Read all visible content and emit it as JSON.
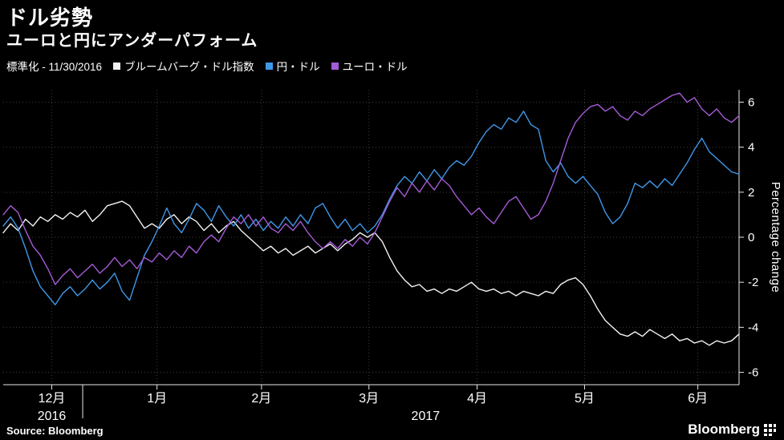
{
  "header": {
    "title": "ドル劣勢",
    "subtitle": "ユーロと円にアンダーパフォーム",
    "legend_prefix": "標準化 - 11/30/2016"
  },
  "footer": {
    "source": "Source: Bloomberg",
    "brand": "Bloomberg"
  },
  "chart_data": {
    "type": "line",
    "title": "ドル劣勢",
    "subtitle": "ユーロと円にアンダーパフォーム",
    "normalized_note": "標準化 - 11/30/2016",
    "ylabel": "Percentage change",
    "ylim": [
      -6.55,
      6.55
    ],
    "yticks": [
      6,
      4,
      2,
      0,
      -2,
      -4,
      -6
    ],
    "grid": true,
    "legend_position": "top",
    "xticks": [
      {
        "label": "12月",
        "pos": 0.066
      },
      {
        "label": "1月",
        "pos": 0.209
      },
      {
        "label": "2月",
        "pos": 0.351
      },
      {
        "label": "3月",
        "pos": 0.497
      },
      {
        "label": "4月",
        "pos": 0.644
      },
      {
        "label": "5月",
        "pos": 0.79
      },
      {
        "label": "6月",
        "pos": 0.944
      }
    ],
    "year_labels": [
      {
        "label": "2016",
        "pos": 0.066
      },
      {
        "label": "2017",
        "pos": 0.574
      }
    ],
    "year_divider_pos": 0.108,
    "x_range_note": "x values evenly spaced from 2016-11-30 to 2017-06-09, normalized 0..1",
    "series": [
      {
        "name": "ブルームバーグ・ドル指数",
        "color": "#f2f2f2",
        "values": [
          0.2,
          0.6,
          0.3,
          0.8,
          0.5,
          0.9,
          0.7,
          1.0,
          0.8,
          1.1,
          0.9,
          1.2,
          0.7,
          1.0,
          1.4,
          1.5,
          1.6,
          1.4,
          0.9,
          0.4,
          0.6,
          0.4,
          0.8,
          1.0,
          0.6,
          0.9,
          0.7,
          0.3,
          0.6,
          0.2,
          0.5,
          0.7,
          0.3,
          0.0,
          -0.3,
          -0.6,
          -0.4,
          -0.7,
          -0.5,
          -0.8,
          -0.6,
          -0.4,
          -0.7,
          -0.5,
          -0.3,
          -0.6,
          -0.3,
          -0.1,
          0.2,
          0.0,
          0.2,
          -0.2,
          -0.9,
          -1.5,
          -1.9,
          -2.2,
          -2.1,
          -2.4,
          -2.3,
          -2.5,
          -2.3,
          -2.4,
          -2.2,
          -2.0,
          -2.3,
          -2.4,
          -2.3,
          -2.5,
          -2.4,
          -2.6,
          -2.4,
          -2.5,
          -2.6,
          -2.4,
          -2.5,
          -2.1,
          -1.9,
          -1.8,
          -2.1,
          -2.6,
          -3.2,
          -3.7,
          -4.0,
          -4.3,
          -4.4,
          -4.2,
          -4.4,
          -4.1,
          -4.3,
          -4.5,
          -4.3,
          -4.6,
          -4.5,
          -4.7,
          -4.6,
          -4.8,
          -4.6,
          -4.7,
          -4.6,
          -4.3
        ]
      },
      {
        "name": "円・ドル",
        "color": "#3f97e8",
        "values": [
          0.5,
          0.9,
          0.4,
          -0.5,
          -1.5,
          -2.2,
          -2.6,
          -3.0,
          -2.5,
          -2.2,
          -2.6,
          -2.3,
          -1.9,
          -2.3,
          -2.0,
          -1.6,
          -2.4,
          -2.8,
          -1.8,
          -0.8,
          -0.2,
          0.5,
          1.3,
          0.6,
          0.2,
          0.8,
          1.5,
          1.2,
          0.7,
          1.4,
          0.9,
          0.5,
          1.0,
          0.4,
          0.8,
          0.3,
          0.7,
          0.4,
          0.9,
          0.5,
          1.0,
          0.6,
          1.3,
          1.5,
          0.9,
          0.4,
          0.8,
          0.3,
          0.6,
          0.2,
          0.5,
          1.0,
          1.7,
          2.3,
          2.7,
          2.4,
          2.9,
          2.5,
          3.0,
          2.6,
          3.1,
          3.4,
          3.2,
          3.6,
          4.2,
          4.7,
          5.0,
          4.8,
          5.3,
          5.1,
          5.6,
          5.0,
          4.8,
          3.4,
          2.9,
          3.3,
          2.7,
          2.4,
          2.7,
          2.3,
          1.9,
          1.1,
          0.6,
          0.9,
          1.5,
          2.4,
          2.2,
          2.5,
          2.2,
          2.6,
          2.3,
          2.8,
          3.3,
          3.9,
          4.4,
          3.8,
          3.5,
          3.2,
          2.9,
          2.8
        ]
      },
      {
        "name": "ユーロ・ドル",
        "color": "#a55ad6",
        "values": [
          1.0,
          1.4,
          1.1,
          0.3,
          -0.4,
          -0.8,
          -1.4,
          -2.1,
          -1.7,
          -1.4,
          -1.8,
          -1.5,
          -1.2,
          -1.6,
          -1.3,
          -0.9,
          -1.3,
          -1.0,
          -1.4,
          -0.9,
          -1.1,
          -0.7,
          -1.0,
          -0.6,
          -0.9,
          -0.4,
          -0.7,
          -0.2,
          0.1,
          -0.2,
          0.4,
          0.9,
          0.6,
          1.0,
          0.5,
          0.9,
          0.4,
          0.2,
          0.6,
          0.3,
          0.7,
          0.2,
          -0.2,
          -0.5,
          -0.2,
          -0.5,
          -0.1,
          -0.4,
          0.0,
          -0.3,
          0.2,
          0.9,
          1.6,
          2.2,
          1.8,
          2.4,
          2.0,
          2.5,
          2.1,
          2.6,
          2.3,
          1.8,
          1.4,
          1.0,
          1.3,
          0.9,
          0.6,
          1.1,
          1.6,
          1.8,
          1.3,
          0.8,
          1.0,
          1.6,
          2.4,
          3.4,
          4.4,
          5.1,
          5.5,
          5.8,
          5.9,
          5.6,
          5.8,
          5.4,
          5.2,
          5.6,
          5.4,
          5.7,
          5.9,
          6.1,
          6.3,
          6.4,
          6.0,
          6.2,
          5.7,
          5.4,
          5.7,
          5.3,
          5.1,
          5.4
        ]
      }
    ]
  }
}
